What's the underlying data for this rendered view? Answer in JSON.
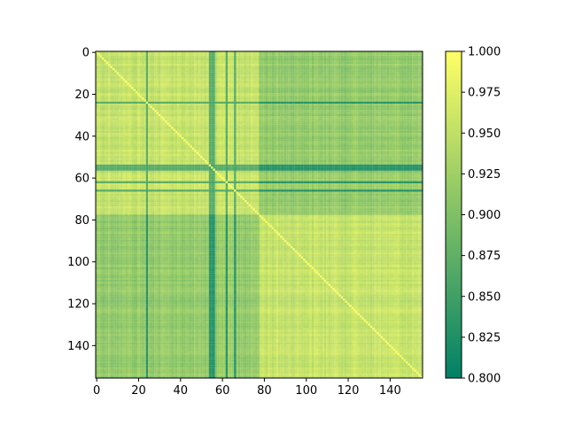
{
  "chart_data": {
    "type": "heatmap",
    "title": "",
    "xlabel": "",
    "ylabel": "",
    "n": 156,
    "xlim": [
      0,
      155
    ],
    "ylim": [
      155,
      0
    ],
    "x_ticks": [
      0,
      20,
      40,
      60,
      80,
      100,
      120,
      140
    ],
    "y_ticks": [
      0,
      20,
      40,
      60,
      80,
      100,
      120,
      140
    ],
    "x_tick_labels": [
      "0",
      "20",
      "40",
      "60",
      "80",
      "100",
      "120",
      "140"
    ],
    "y_tick_labels": [
      "0",
      "20",
      "40",
      "60",
      "80",
      "100",
      "120",
      "140"
    ],
    "colormap": "summer",
    "colormap_low": "#008066",
    "colormap_high": "#FFFF66",
    "value_range": [
      0.8,
      1.0
    ],
    "colorbar_ticks": [
      0.8,
      0.825,
      0.85,
      0.875,
      0.9,
      0.925,
      0.95,
      0.975,
      1.0
    ],
    "colorbar_tick_labels": [
      "0.800",
      "0.825",
      "0.850",
      "0.875",
      "0.900",
      "0.925",
      "0.950",
      "0.975",
      "1.000"
    ],
    "block_boundaries": [
      0,
      78,
      156
    ],
    "within_block_similarity": 0.975,
    "between_block_similarity": 0.935,
    "low_similarity_indices": [
      24,
      54,
      55,
      56,
      62,
      66
    ],
    "low_similarity_value": 0.83
  }
}
